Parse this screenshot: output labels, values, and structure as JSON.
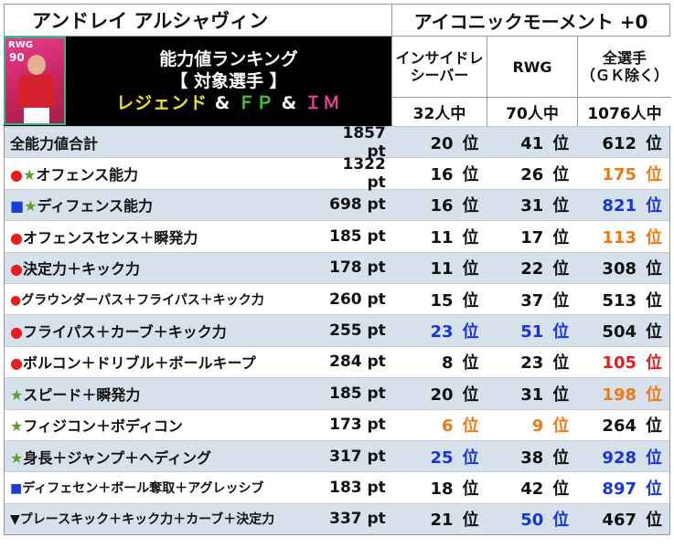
{
  "title": {
    "player_name": "アンドレイ アルシャヴィン",
    "card_type": "アイコニックモーメント +0"
  },
  "card": {
    "position": "RWG",
    "rating": "90"
  },
  "banner": {
    "line1": "能力値ランキング",
    "line2": "【 対象選手 】",
    "line3_legend": "レジェンド",
    "line3_amp1": " & ",
    "line3_fp": "ＦＰ",
    "line3_amp2": " & ",
    "line3_im": "ＩＭ"
  },
  "columns": [
    {
      "label_line1": "インサイドレ",
      "label_line2": "シーバー",
      "count": "32人中"
    },
    {
      "label_line1": "RWG",
      "label_line2": "",
      "count": "70人中"
    },
    {
      "label_line1": "全選手",
      "label_line2": "（ＧＫ除く）",
      "count": "1076人中"
    }
  ],
  "rank_suffix": "位",
  "colors": {
    "row_alt_bg": "#d6e1ec",
    "marker_red": "#e81d1d",
    "marker_green": "#5aa02c",
    "marker_blue": "#1a3fd6",
    "rank_orange": "#f07a12",
    "rank_blue": "#1736d8",
    "rank_red": "#e51b1b",
    "card_pink": "#e73c8e",
    "card_border": "#2fb58c"
  },
  "rows": [
    {
      "markers": "",
      "label": "全能力値合計",
      "pt": "1857 pt",
      "r1": "20",
      "r2": "41",
      "r3": "612",
      "c1": "black",
      "c2": "black",
      "c3": "black"
    },
    {
      "markers": "●★",
      "label": "オフェンス能力",
      "pt": "1322 pt",
      "r1": "16",
      "r2": "26",
      "r3": "175",
      "c1": "black",
      "c2": "black",
      "c3": "orange"
    },
    {
      "markers": "■★",
      "label": "ディフェンス能力",
      "pt": "698 pt",
      "r1": "16",
      "r2": "31",
      "r3": "821",
      "c1": "black",
      "c2": "black",
      "c3": "blue"
    },
    {
      "markers": "●",
      "label": "オフェンスセンス＋瞬発力",
      "pt": "185 pt",
      "r1": "11",
      "r2": "17",
      "r3": "113",
      "c1": "black",
      "c2": "black",
      "c3": "orange"
    },
    {
      "markers": "●",
      "label": "決定力＋キック力",
      "pt": "178 pt",
      "r1": "11",
      "r2": "22",
      "r3": "308",
      "c1": "black",
      "c2": "black",
      "c3": "black"
    },
    {
      "markers": "●",
      "label": "グラウンダーパス＋フライパス＋キック力",
      "pt": "260 pt",
      "r1": "15",
      "r2": "37",
      "r3": "513",
      "c1": "black",
      "c2": "black",
      "c3": "black"
    },
    {
      "markers": "●",
      "label": "フライパス＋カーブ＋キック力",
      "pt": "255 pt",
      "r1": "23",
      "r2": "51",
      "r3": "504",
      "c1": "blue",
      "c2": "blue",
      "c3": "black"
    },
    {
      "markers": "●",
      "label": "ボルコン＋ドリブル＋ボールキープ",
      "pt": "284 pt",
      "r1": "8",
      "r2": "23",
      "r3": "105",
      "c1": "black",
      "c2": "black",
      "c3": "red"
    },
    {
      "markers": "★",
      "label": "スピード＋瞬発力",
      "pt": "185 pt",
      "r1": "20",
      "r2": "31",
      "r3": "198",
      "c1": "black",
      "c2": "black",
      "c3": "orange"
    },
    {
      "markers": "★",
      "label": "フィジコン＋ボディコン",
      "pt": "173 pt",
      "r1": "6",
      "r2": "9",
      "r3": "264",
      "c1": "orange",
      "c2": "orange",
      "c3": "black"
    },
    {
      "markers": "★",
      "label": "身長＋ジャンプ＋ヘディング",
      "pt": "317 pt",
      "r1": "25",
      "r2": "38",
      "r3": "928",
      "c1": "blue",
      "c2": "black",
      "c3": "blue"
    },
    {
      "markers": "■",
      "label": "ディフェセン＋ボール奪取＋アグレッシブ",
      "pt": "183 pt",
      "r1": "18",
      "r2": "42",
      "r3": "897",
      "c1": "black",
      "c2": "black",
      "c3": "blue"
    },
    {
      "markers": "▼",
      "label": "プレースキック＋キック力＋カーブ＋決定力",
      "pt": "337 pt",
      "r1": "21",
      "r2": "50",
      "r3": "467",
      "c1": "black",
      "c2": "blue",
      "c3": "black"
    }
  ]
}
